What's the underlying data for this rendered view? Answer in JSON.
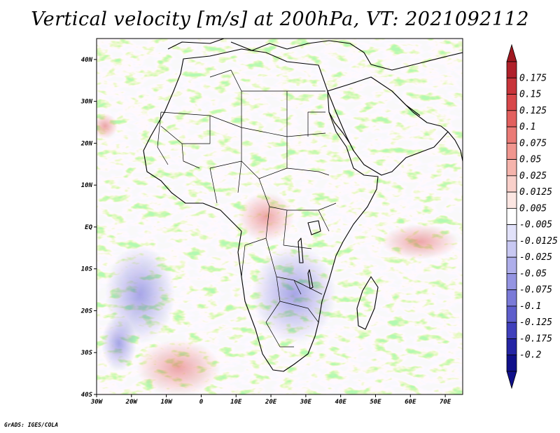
{
  "title": "Vertical velocity [m/s] at 200hPa, VT: 2021092112",
  "footer": "GrADS: IGES/COLA",
  "map": {
    "lon_range": [
      -30,
      75
    ],
    "lat_range": [
      -40,
      45
    ],
    "lat_ticks": [
      {
        "value": 40,
        "label": "40N"
      },
      {
        "value": 30,
        "label": "30N"
      },
      {
        "value": 20,
        "label": "20N"
      },
      {
        "value": 10,
        "label": "10N"
      },
      {
        "value": 0,
        "label": "EQ"
      },
      {
        "value": -10,
        "label": "10S"
      },
      {
        "value": -20,
        "label": "20S"
      },
      {
        "value": -30,
        "label": "30S"
      },
      {
        "value": -40,
        "label": "40S"
      }
    ],
    "lon_ticks": [
      {
        "value": -30,
        "label": "30W"
      },
      {
        "value": -20,
        "label": "20W"
      },
      {
        "value": -10,
        "label": "10W"
      },
      {
        "value": 0,
        "label": "0"
      },
      {
        "value": 10,
        "label": "10E"
      },
      {
        "value": 20,
        "label": "20E"
      },
      {
        "value": 30,
        "label": "30E"
      },
      {
        "value": 40,
        "label": "40E"
      },
      {
        "value": 50,
        "label": "50E"
      },
      {
        "value": 60,
        "label": "60E"
      },
      {
        "value": 70,
        "label": "70E"
      }
    ]
  },
  "colorbar": {
    "levels": [
      {
        "label": "0.175",
        "color": "#b0202a"
      },
      {
        "label": "0.15",
        "color": "#c8343a"
      },
      {
        "label": "0.125",
        "color": "#d8484a"
      },
      {
        "label": "0.1",
        "color": "#e2605e"
      },
      {
        "label": "0.075",
        "color": "#ea7a76"
      },
      {
        "label": "0.05",
        "color": "#f0968f"
      },
      {
        "label": "0.025",
        "color": "#f5b4ac"
      },
      {
        "label": "0.0125",
        "color": "#f9d0ca"
      },
      {
        "label": "0.005",
        "color": "#fce6e2"
      },
      {
        "label": "-0.005",
        "color": "#ffffff"
      },
      {
        "label": "-0.0125",
        "color": "#e2e2fa"
      },
      {
        "label": "-0.025",
        "color": "#c8c8f2"
      },
      {
        "label": "-0.05",
        "color": "#aeaeea"
      },
      {
        "label": "-0.075",
        "color": "#9494e2"
      },
      {
        "label": "-0.1",
        "color": "#7a7ad8"
      },
      {
        "label": "-0.125",
        "color": "#5e5ecc"
      },
      {
        "label": "-0.175",
        "color": "#4040bc"
      },
      {
        "label": "-0.2",
        "color": "#2424a4"
      },
      {
        "label": "",
        "color": "#10108a"
      }
    ],
    "top_color": "#a01820",
    "bottom_color": "#10108a"
  },
  "colors": {
    "warm": "#e86a6a",
    "cool": "#6a6ae0",
    "neutral": "#f4f4ff",
    "coast": "#000000"
  }
}
